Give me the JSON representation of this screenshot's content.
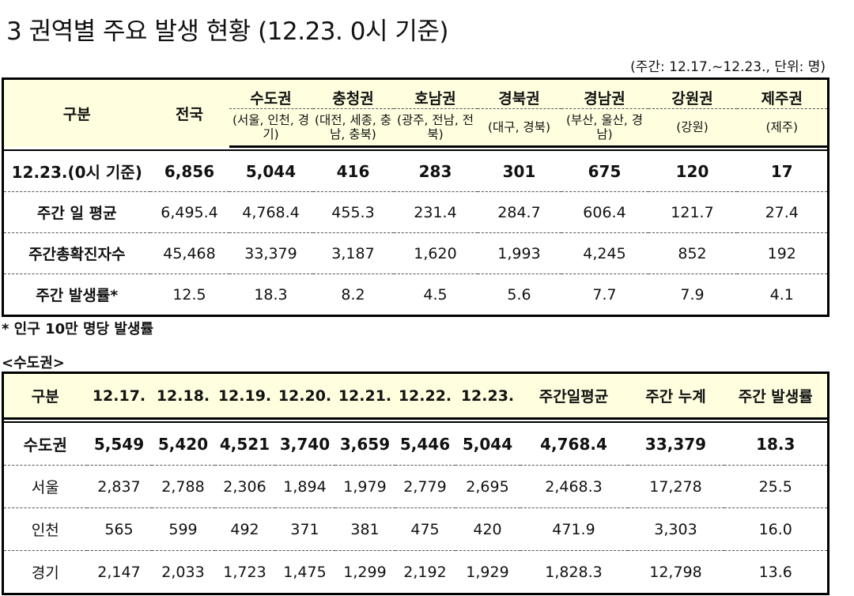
{
  "title": "3  권역별 주요 발생 현황 (12.23. 0시 기준)",
  "unit_note": "(주간: 12.17.~12.23., 단위: 명)",
  "table1": {
    "header_gubun": "구분",
    "header_national": "전국",
    "regions": [
      {
        "name": "수도권",
        "sub": "(서울, 인천, 경기)"
      },
      {
        "name": "충청권",
        "sub": "(대전, 세종, 충남, 충북)"
      },
      {
        "name": "호남권",
        "sub": "(광주, 전남, 전북)"
      },
      {
        "name": "경북권",
        "sub": "(대구, 경북)"
      },
      {
        "name": "경남권",
        "sub": "(부산, 울산, 경남)"
      },
      {
        "name": "강원권",
        "sub": "(강원)"
      },
      {
        "name": "제주권",
        "sub": "(제주)"
      }
    ],
    "rows": [
      {
        "label": "12.23.(0시 기준)",
        "values": [
          "6,856",
          "5,044",
          "416",
          "283",
          "301",
          "675",
          "120",
          "17"
        ]
      },
      {
        "label": "주간 일 평균",
        "values": [
          "6,495.4",
          "4,768.4",
          "455.3",
          "231.4",
          "284.7",
          "606.4",
          "121.7",
          "27.4"
        ]
      },
      {
        "label": "주간총확진자수",
        "values": [
          "45,468",
          "33,379",
          "3,187",
          "1,620",
          "1,993",
          "4,245",
          "852",
          "192"
        ]
      },
      {
        "label": "주간 발생률*",
        "values": [
          "12.5",
          "18.3",
          "8.2",
          "4.5",
          "5.6",
          "7.7",
          "7.9",
          "4.1"
        ]
      }
    ]
  },
  "footnote": "* 인구 10만 명당 발생률",
  "section_label": "<수도권>",
  "table2": {
    "headers": [
      "구분",
      "12.17.",
      "12.18.",
      "12.19.",
      "12.20.",
      "12.21.",
      "12.22.",
      "12.23.",
      "주간일평균",
      "주간 누계",
      "주간 발생률"
    ],
    "rows": [
      {
        "label": "수도권",
        "values": [
          "5,549",
          "5,420",
          "4,521",
          "3,740",
          "3,659",
          "5,446",
          "5,044",
          "4,768.4",
          "33,379",
          "18.3"
        ]
      },
      {
        "label": "서울",
        "values": [
          "2,837",
          "2,788",
          "2,306",
          "1,894",
          "1,979",
          "2,779",
          "2,695",
          "2,468.3",
          "17,278",
          "25.5"
        ]
      },
      {
        "label": "인천",
        "values": [
          "565",
          "599",
          "492",
          "371",
          "381",
          "475",
          "420",
          "471.9",
          "3,303",
          "16.0"
        ]
      },
      {
        "label": "경기",
        "values": [
          "2,147",
          "2,033",
          "1,723",
          "1,475",
          "1,299",
          "2,192",
          "1,929",
          "1,828.3",
          "12,798",
          "13.6"
        ]
      }
    ]
  }
}
